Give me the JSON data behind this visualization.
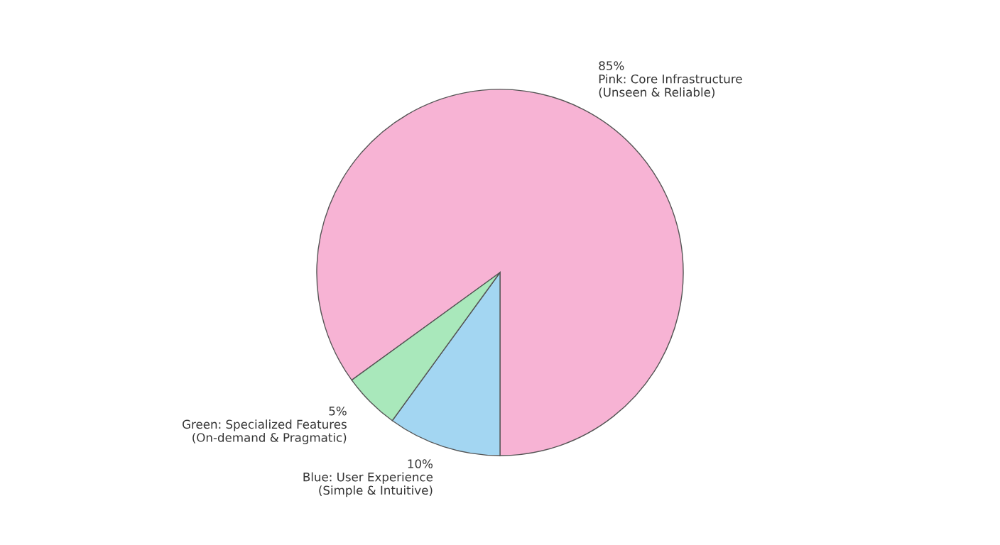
{
  "chart_data": {
    "type": "pie",
    "categories": [
      "Pink: Core Infrastructure\n(Unseen & Reliable)",
      "Blue: User Experience\n(Simple & Intuitive)",
      "Green: Specialized Features\n(On-demand & Pragmatic)"
    ],
    "values": [
      85,
      10,
      5
    ],
    "value_labels": [
      "85%",
      "10%",
      "5%"
    ],
    "colors": [
      "#f7b3d4",
      "#a3d6f2",
      "#a9e8bb"
    ]
  }
}
